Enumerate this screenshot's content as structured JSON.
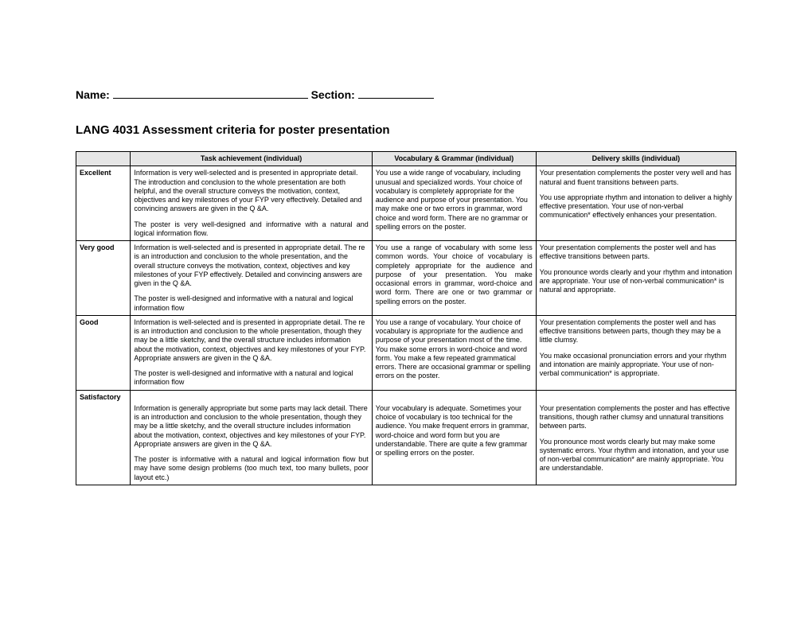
{
  "header": {
    "nameLabel": "Name:",
    "nameBlankWidth": 245,
    "sectionLabel": "Section:",
    "sectionBlankWidth": 95,
    "gap": 48
  },
  "title": "LANG 4031 Assessment criteria for poster presentation",
  "columns": [
    "",
    "Task achievement (individual)",
    "Vocabulary & Grammar (individual)",
    "Delivery skills (individual)"
  ],
  "rows": [
    {
      "level": "Excellent",
      "task": {
        "paras": [
          "Information is very well-selected and is presented in appropriate detail. The introduction and conclusion to the whole presentation are both helpful, and the overall structure conveys the motivation, context, objectives and key milestones of your FYP very effectively.  Detailed and convincing answers are given in the Q &A.",
          "The poster is very well-designed and informative with a natural and logical information flow."
        ],
        "justifyIdx": [
          1
        ]
      },
      "vocab": {
        "paras": [
          "You use a wide range of vocabulary, including unusual and specialized words. Your choice of vocabulary is completely appropriate for the audience and purpose of your presentation. You may make one or two errors in grammar, word choice and word form. There are no grammar or spelling errors on the poster."
        ]
      },
      "delivery": {
        "paras": [
          "Your presentation complements the poster very well and has natural and fluent transitions between parts.",
          "You use appropriate rhythm and intonation to deliver a highly effective presentation. Your use of non-verbal communication* effectively enhances your presentation."
        ]
      }
    },
    {
      "level": "Very good",
      "task": {
        "paras": [
          "Information is well-selected and is presented in appropriate detail. The re is an introduction and conclusion to the whole presentation, and the overall structure conveys the motivation, context, objectives and key milestones of your FYP effectively.  Detailed and convincing answers are given in the Q &A.",
          "The poster is well-designed and informative with a natural and logical information flow"
        ]
      },
      "vocab": {
        "paras": [
          "You use a range of vocabulary with some less common words. Your choice of vocabulary is completely appropriate for the audience and purpose of your presentation. You make occasional errors in grammar, word-choice and word form. There are one or two grammar or spelling errors on the poster."
        ],
        "justifyIdx": [
          0
        ]
      },
      "delivery": {
        "paras": [
          "Your presentation complements the poster well and has effective transitions between parts.",
          "You pronounce words clearly and your rhythm and intonation are appropriate. Your use of non-verbal communication* is natural and appropriate."
        ]
      }
    },
    {
      "level": "Good",
      "task": {
        "paras": [
          "Information is well-selected and is presented in appropriate detail. The re is an introduction and conclusion to the whole presentation, though they may be a little sketchy, and the overall structure includes information about the motivation, context, objectives and key milestones of your FYP.  Appropriate answers are given in the Q &A.",
          "The poster is well-designed and informative with a natural and logical information flow"
        ]
      },
      "vocab": {
        "paras": [
          "You use a range of vocabulary. Your choice of vocabulary is appropriate for the audience and purpose of your presentation most of the time. You make some errors in word-choice and word form. You make a few repeated grammatical errors. There are occasional grammar or spelling errors on the poster."
        ]
      },
      "delivery": {
        "paras": [
          "Your presentation complements the poster well and has effective transitions between parts, though they may be a little clumsy.",
          "You make occasional pronunciation errors and your rhythm and intonation are mainly appropriate. Your use of non-verbal communication* is appropriate."
        ]
      }
    },
    {
      "level": "Satisfactory",
      "task": {
        "paras": [
          "",
          "Information is generally appropriate but some parts may lack detail. There is an introduction and conclusion to the whole presentation, though they may be a little sketchy, and the overall structure includes information about the motivation, context, objectives and key milestones of your FYP.  Appropriate answers are given in the Q &A.",
          "The poster is informative with a natural and logical information flow but may have some design problems (too much text, too many bullets, poor layout etc.)"
        ],
        "justifyIdx": [
          2
        ]
      },
      "vocab": {
        "paras": [
          "",
          "Your vocabulary is adequate. Sometimes your choice of vocabulary is too technical for the audience. You make frequent errors in grammar, word-choice and word form but you are understandable. There are quite a few grammar or spelling errors on the poster."
        ]
      },
      "delivery": {
        "paras": [
          "",
          "Your presentation complements the poster and has effective transitions, though rather clumsy and unnatural transitions between parts.",
          "You pronounce most words clearly but may make some systematic errors. Your rhythm and intonation, and your use of non-verbal communication* are mainly appropriate. You are understandable."
        ]
      }
    }
  ]
}
